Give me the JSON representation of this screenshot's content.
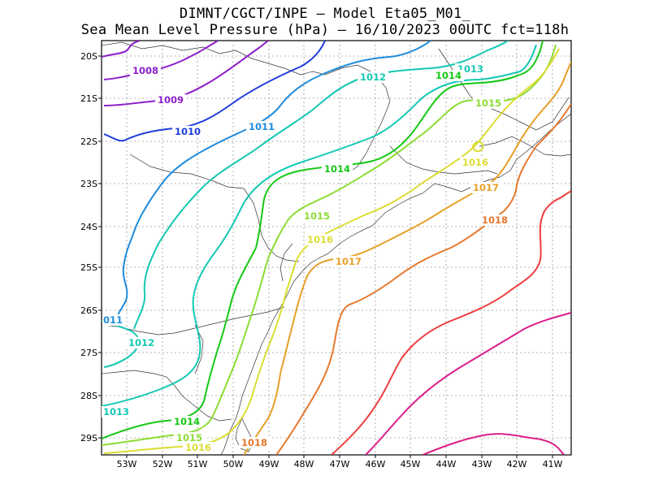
{
  "header": {
    "title_line1": "DIMNT/CGCT/INPE –  Model Eta05_M01_",
    "title_line2": "Sea Mean Level Pressure (hPa) – 16/10/2023 00UTC fct=118h"
  },
  "axes": {
    "lon_labels": [
      "53W",
      "52W",
      "51W",
      "50W",
      "49W",
      "48W",
      "47W",
      "46W",
      "45W",
      "44W",
      "43W",
      "42W",
      "41W"
    ],
    "lat_labels": [
      "20S",
      "21S",
      "22S",
      "23S",
      "24S",
      "25S",
      "26S",
      "27S",
      "28S",
      "29S"
    ]
  },
  "contour_labels": [
    {
      "text": "1008",
      "color": "#8c1ec8"
    },
    {
      "text": "1009",
      "color": "#8c1ec8"
    },
    {
      "text": "1010",
      "color": "#1e3cdc"
    },
    {
      "text": "1011",
      "color": "#1e8cdc"
    },
    {
      "text": "011",
      "color": "#1e8cdc"
    },
    {
      "text": "1012",
      "color": "#14c8b4"
    },
    {
      "text": "1012",
      "color": "#14c8b4"
    },
    {
      "text": "1013",
      "color": "#14c8b4"
    },
    {
      "text": "1013",
      "color": "#14c8b4"
    },
    {
      "text": "1014",
      "color": "#14c814"
    },
    {
      "text": "1014",
      "color": "#14c814"
    },
    {
      "text": "1014",
      "color": "#14c814"
    },
    {
      "text": "1015",
      "color": "#8cdc32"
    },
    {
      "text": "1015",
      "color": "#8cdc32"
    },
    {
      "text": "1015",
      "color": "#8cdc32"
    },
    {
      "text": "1016",
      "color": "#dcdc32"
    },
    {
      "text": "1016",
      "color": "#dcdc32"
    },
    {
      "text": "1016",
      "color": "#dcdc32"
    },
    {
      "text": "1017",
      "color": "#e6a028"
    },
    {
      "text": "1017",
      "color": "#e6a028"
    },
    {
      "text": "1018",
      "color": "#e6782d"
    },
    {
      "text": "1018",
      "color": "#e6782d"
    }
  ],
  "colors": {
    "c1008": "#8c1ec8",
    "c1010": "#1e3cdc",
    "c1011": "#1e8cdc",
    "c1012": "#14c8b4",
    "c1014": "#14c814",
    "c1015": "#8cdc32",
    "c1016": "#dcdc32",
    "c1017": "#e6a028",
    "c1018": "#e6782d",
    "c1019": "#f03c3c",
    "c1020": "#dc1e8c"
  }
}
